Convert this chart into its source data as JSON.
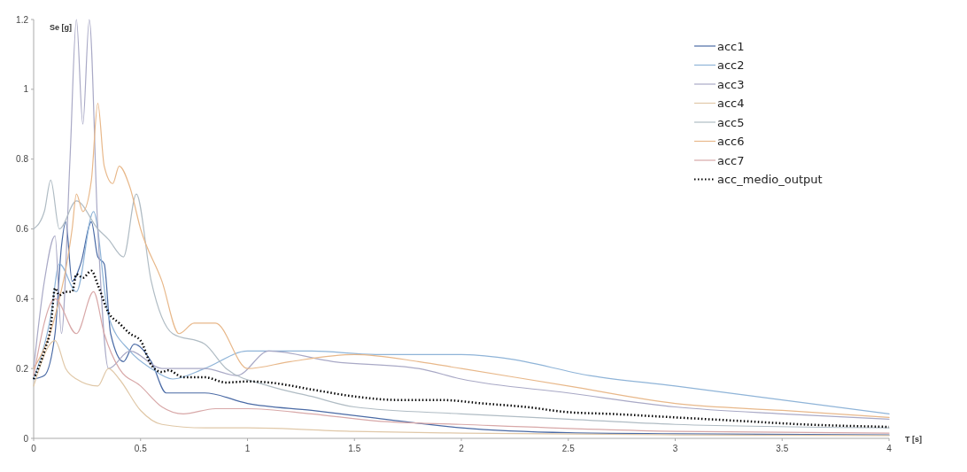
{
  "chart_data": {
    "type": "line",
    "xlabel": "T [s]",
    "ylabel": "Se [g]",
    "xlim": [
      0,
      4
    ],
    "xticks": [
      0,
      0.5,
      1,
      1.5,
      2,
      2.5,
      3,
      3.5,
      4
    ],
    "ylim": [
      0,
      1.2
    ],
    "yticks": [
      0,
      0.2,
      0.4,
      0.6,
      0.8,
      1,
      1.2
    ],
    "grid": false,
    "legend": "top right",
    "line_style": "solid",
    "marker": "none",
    "series": [
      {
        "name": "acc1",
        "color": "#4a6aa5",
        "x": [
          0,
          0.05,
          0.1,
          0.13,
          0.15,
          0.18,
          0.22,
          0.27,
          0.3,
          0.33,
          0.36,
          0.42,
          0.47,
          0.55,
          0.62,
          0.7,
          0.8,
          1.0,
          1.3,
          1.6,
          2.0,
          2.5,
          3,
          4
        ],
        "values": [
          0.17,
          0.18,
          0.3,
          0.55,
          0.62,
          0.45,
          0.5,
          0.62,
          0.52,
          0.5,
          0.3,
          0.22,
          0.27,
          0.22,
          0.13,
          0.13,
          0.13,
          0.1,
          0.08,
          0.058,
          0.03,
          0.016,
          0.013,
          0.01
        ]
      },
      {
        "name": "acc2",
        "color": "#8fb4d8",
        "x": [
          0,
          0.08,
          0.12,
          0.2,
          0.28,
          0.35,
          0.45,
          0.55,
          0.65,
          0.8,
          1.0,
          1.3,
          1.6,
          2.0,
          2.2,
          2.6,
          3.0,
          3.5,
          4
        ],
        "values": [
          0.17,
          0.35,
          0.5,
          0.42,
          0.65,
          0.35,
          0.25,
          0.2,
          0.17,
          0.2,
          0.25,
          0.25,
          0.24,
          0.24,
          0.23,
          0.18,
          0.15,
          0.11,
          0.07
        ]
      },
      {
        "name": "acc3",
        "color": "#a9a9c6",
        "x": [
          0,
          0.05,
          0.1,
          0.13,
          0.17,
          0.2,
          0.23,
          0.26,
          0.3,
          0.35,
          0.45,
          0.6,
          0.8,
          0.95,
          1.1,
          1.4,
          1.8,
          2.0,
          2.5,
          3,
          3.5,
          4
        ],
        "values": [
          0.2,
          0.45,
          0.58,
          0.3,
          0.8,
          1.2,
          0.9,
          1.2,
          0.6,
          0.2,
          0.25,
          0.2,
          0.2,
          0.18,
          0.25,
          0.22,
          0.2,
          0.17,
          0.13,
          0.09,
          0.07,
          0.055
        ]
      },
      {
        "name": "acc4",
        "color": "#e0c8a8",
        "x": [
          0,
          0.1,
          0.15,
          0.2,
          0.3,
          0.35,
          0.4,
          0.5,
          0.6,
          0.8,
          1.0,
          1.5,
          2,
          3,
          4
        ],
        "values": [
          0.15,
          0.28,
          0.2,
          0.17,
          0.15,
          0.2,
          0.17,
          0.08,
          0.04,
          0.03,
          0.03,
          0.02,
          0.015,
          0.01,
          0.008
        ]
      },
      {
        "name": "acc5",
        "color": "#b0bcc4",
        "x": [
          0,
          0.05,
          0.08,
          0.12,
          0.2,
          0.3,
          0.35,
          0.42,
          0.48,
          0.55,
          0.65,
          0.8,
          0.9,
          1.1,
          1.3,
          1.5,
          2,
          2.5,
          3,
          4
        ],
        "values": [
          0.6,
          0.65,
          0.74,
          0.6,
          0.68,
          0.6,
          0.57,
          0.52,
          0.7,
          0.45,
          0.3,
          0.27,
          0.2,
          0.15,
          0.12,
          0.09,
          0.07,
          0.055,
          0.04,
          0.03
        ]
      },
      {
        "name": "acc6",
        "color": "#e8b88a",
        "x": [
          0,
          0.1,
          0.18,
          0.2,
          0.23,
          0.27,
          0.3,
          0.33,
          0.37,
          0.4,
          0.45,
          0.5,
          0.6,
          0.68,
          0.75,
          0.85,
          1.0,
          1.2,
          1.5,
          1.8,
          2.0,
          2.5,
          3,
          3.5,
          4
        ],
        "values": [
          0.2,
          0.35,
          0.6,
          0.7,
          0.65,
          0.74,
          0.96,
          0.78,
          0.73,
          0.78,
          0.72,
          0.6,
          0.45,
          0.3,
          0.33,
          0.33,
          0.2,
          0.22,
          0.24,
          0.22,
          0.2,
          0.15,
          0.1,
          0.08,
          0.06
        ]
      },
      {
        "name": "acc7",
        "color": "#d8a8a8",
        "x": [
          0,
          0.1,
          0.2,
          0.28,
          0.33,
          0.4,
          0.5,
          0.6,
          0.7,
          0.85,
          1.0,
          1.3,
          1.6,
          2,
          3,
          4
        ],
        "values": [
          0.18,
          0.4,
          0.3,
          0.42,
          0.3,
          0.2,
          0.15,
          0.09,
          0.07,
          0.085,
          0.085,
          0.07,
          0.05,
          0.04,
          0.02,
          0.015
        ]
      },
      {
        "name": "acc_medio_output",
        "color": "#000000",
        "line_style": "dotted",
        "x": [
          0,
          0.05,
          0.08,
          0.1,
          0.12,
          0.15,
          0.18,
          0.2,
          0.23,
          0.27,
          0.3,
          0.35,
          0.4,
          0.45,
          0.5,
          0.55,
          0.6,
          0.63,
          0.7,
          0.8,
          0.9,
          1.0,
          1.1,
          1.3,
          1.5,
          1.7,
          1.9,
          2.1,
          2.3,
          2.5,
          2.7,
          3.0,
          3.3,
          3.6,
          4.0
        ],
        "values": [
          0.17,
          0.25,
          0.32,
          0.43,
          0.41,
          0.42,
          0.42,
          0.47,
          0.46,
          0.48,
          0.44,
          0.36,
          0.33,
          0.3,
          0.28,
          0.21,
          0.19,
          0.195,
          0.175,
          0.175,
          0.16,
          0.163,
          0.16,
          0.14,
          0.12,
          0.11,
          0.11,
          0.1,
          0.09,
          0.075,
          0.07,
          0.06,
          0.05,
          0.04,
          0.033
        ]
      }
    ]
  }
}
